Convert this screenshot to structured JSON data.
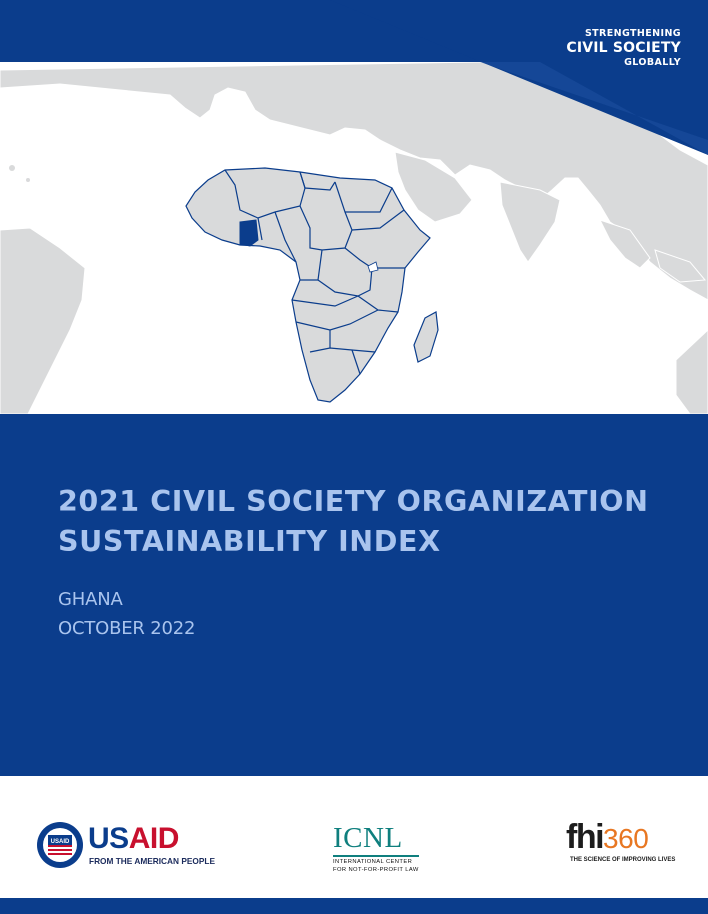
{
  "tagline": {
    "line1": "STRENGTHENING",
    "line2": "CIVIL SOCIETY",
    "line3": "GLOBALLY"
  },
  "map": {
    "description_icon": "world-map-africa-icon",
    "highlighted_country": "Ghana",
    "land_color": "#d9dadb",
    "border_color": "#0b3d8c",
    "highlight_color": "#0b3d8c"
  },
  "report": {
    "title_line1": "2021 CIVIL SOCIETY ORGANIZATION",
    "title_line2": "SUSTAINABILITY INDEX",
    "country": "GHANA",
    "date": "OCTOBER 2022"
  },
  "logos": {
    "usaid": {
      "name_us": "US",
      "name_aid": "AID",
      "seal_text": "USAID",
      "tagline": "FROM THE AMERICAN PEOPLE"
    },
    "icnl": {
      "name": "ICNL",
      "line1": "INTERNATIONAL CENTER",
      "line2": "FOR NOT-FOR-PROFIT LAW"
    },
    "fhi": {
      "name": "fhi",
      "number": "360",
      "tagline": "THE SCIENCE OF IMPROVING LIVES"
    }
  },
  "colors": {
    "brand_blue": "#0b3d8c",
    "title_text": "#a9c4ee",
    "usaid_red": "#c8102e",
    "icnl_teal": "#0f7f7e",
    "fhi_orange": "#e87722"
  }
}
